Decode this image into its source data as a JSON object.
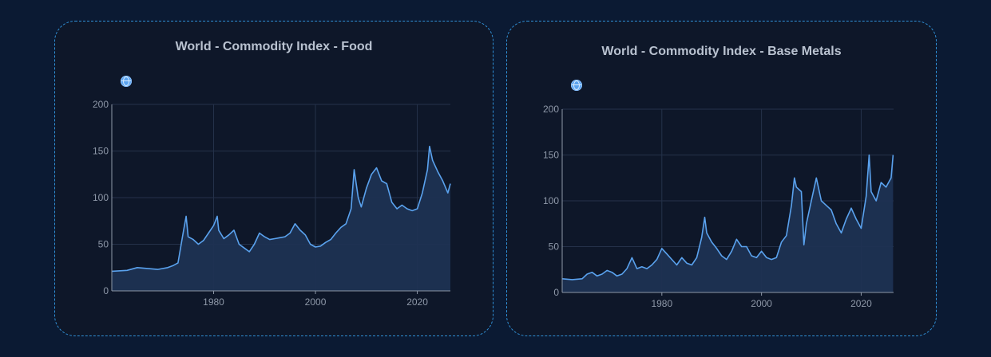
{
  "chart_data": [
    {
      "type": "area",
      "title": "World - Commodity Index - Food",
      "xlabel": "",
      "ylabel": "",
      "xlim": [
        1960,
        2026.5
      ],
      "ylim": [
        0,
        200
      ],
      "x_ticks": [
        1980,
        2000,
        2020
      ],
      "y_ticks": [
        0,
        50,
        100,
        150,
        200
      ],
      "grid": true,
      "color": "#5aa2ee",
      "series": [
        {
          "x": [
            1960,
            1963,
            1965,
            1967,
            1969,
            1971,
            1972,
            1973,
            1974,
            1974.6,
            1975,
            1976,
            1977,
            1978,
            1979,
            1980,
            1980.7,
            1981,
            1982,
            1983,
            1984,
            1985,
            1986,
            1987,
            1988,
            1989,
            1990,
            1991,
            1992,
            1993,
            1994,
            1995,
            1996,
            1997,
            1998,
            1999,
            2000,
            2001,
            2002,
            2003,
            2004,
            2005,
            2006,
            2007,
            2007.6,
            2008.4,
            2009,
            2010,
            2011,
            2012,
            2013,
            2014,
            2015,
            2016,
            2017,
            2018,
            2019,
            2020,
            2021,
            2022,
            2022.4,
            2023,
            2024,
            2025,
            2026,
            2026.5
          ],
          "y": [
            21,
            22,
            25,
            24,
            23,
            25,
            27,
            30,
            62,
            80,
            58,
            55,
            50,
            54,
            62,
            70,
            80,
            65,
            56,
            60,
            65,
            50,
            46,
            42,
            50,
            62,
            58,
            55,
            56,
            57,
            58,
            62,
            72,
            65,
            60,
            50,
            47,
            48,
            52,
            55,
            62,
            68,
            72,
            88,
            130,
            100,
            90,
            110,
            125,
            132,
            118,
            115,
            95,
            88,
            92,
            88,
            86,
            88,
            105,
            130,
            155,
            140,
            128,
            118,
            105,
            115
          ]
        }
      ]
    },
    {
      "type": "area",
      "title": "World - Commodity Index - Base Metals",
      "xlabel": "",
      "ylabel": "",
      "xlim": [
        1960,
        2026.5
      ],
      "ylim": [
        0,
        200
      ],
      "x_ticks": [
        1980,
        2000,
        2020
      ],
      "y_ticks": [
        0,
        50,
        100,
        150,
        200
      ],
      "grid": true,
      "color": "#5aa2ee",
      "series": [
        {
          "x": [
            1960,
            1962,
            1964,
            1965,
            1966,
            1967,
            1968,
            1969,
            1970,
            1971,
            1972,
            1973,
            1974,
            1975,
            1976,
            1977,
            1978,
            1979,
            1980,
            1981,
            1982,
            1983,
            1984,
            1985,
            1986,
            1987,
            1988,
            1988.6,
            1989,
            1990,
            1991,
            1992,
            1993,
            1994,
            1995,
            1996,
            1997,
            1998,
            1999,
            2000,
            2001,
            2002,
            2003,
            2004,
            2005,
            2006,
            2006.6,
            2007,
            2008,
            2008.5,
            2009,
            2010,
            2011,
            2012,
            2013,
            2014,
            2015,
            2016,
            2017,
            2018,
            2019,
            2020,
            2021,
            2021.6,
            2022,
            2023,
            2024,
            2025,
            2026,
            2026.4
          ],
          "y": [
            15,
            14,
            15,
            20,
            22,
            18,
            20,
            24,
            22,
            18,
            20,
            26,
            38,
            26,
            28,
            26,
            30,
            36,
            48,
            42,
            36,
            30,
            38,
            32,
            30,
            38,
            60,
            82,
            65,
            55,
            48,
            40,
            36,
            45,
            58,
            50,
            50,
            40,
            38,
            45,
            38,
            36,
            38,
            55,
            62,
            95,
            125,
            115,
            110,
            52,
            75,
            100,
            125,
            100,
            95,
            90,
            75,
            65,
            80,
            92,
            80,
            70,
            105,
            150,
            110,
            100,
            120,
            115,
            125,
            150
          ]
        }
      ]
    }
  ]
}
